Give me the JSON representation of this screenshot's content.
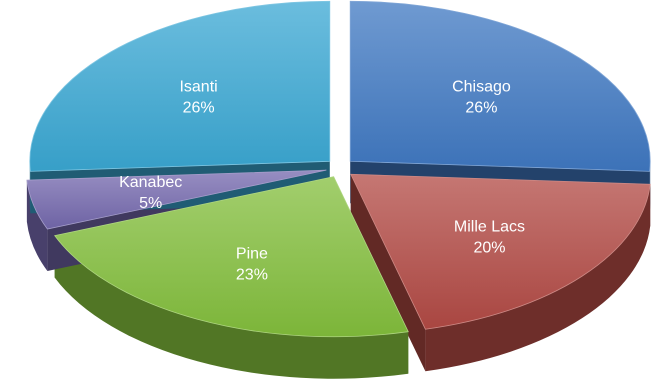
{
  "chart_data": {
    "type": "pie",
    "title": "",
    "three_d": true,
    "exploded": true,
    "slices": [
      {
        "label": "Chisago",
        "percent_label": "26%",
        "value": 26,
        "color": "#3f78c2"
      },
      {
        "label": "Mille Lacs",
        "percent_label": "20%",
        "value": 20,
        "color": "#b24a44"
      },
      {
        "label": "Pine",
        "percent_label": "23%",
        "value": 23,
        "color": "#83be3c"
      },
      {
        "label": "Kanabec",
        "percent_label": "5%",
        "value": 5,
        "color": "#7468ad"
      },
      {
        "label": "Isanti",
        "percent_label": "26%",
        "value": 26,
        "color": "#3aa7d3"
      }
    ]
  }
}
